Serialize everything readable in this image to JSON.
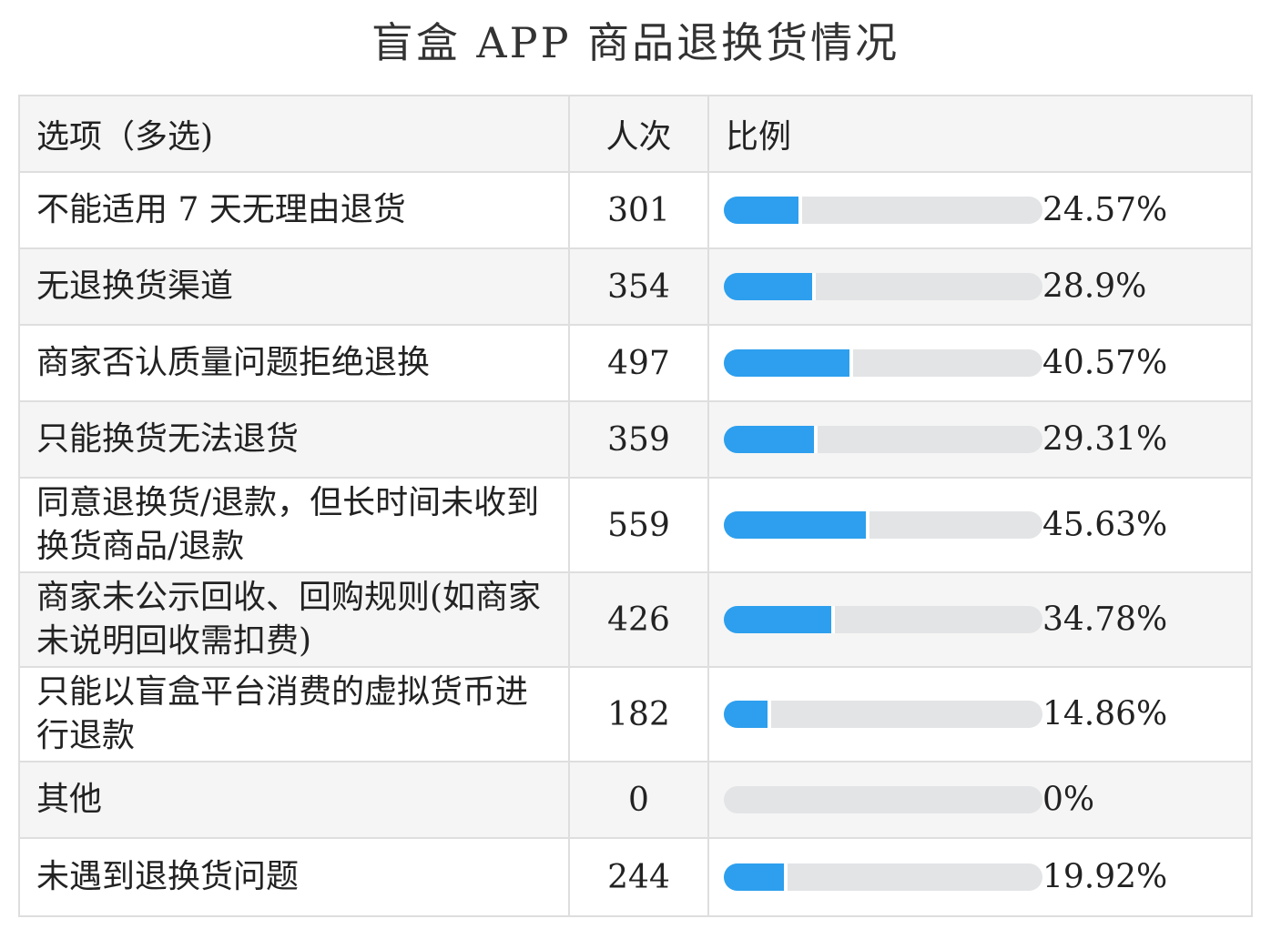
{
  "title": "盲盒 APP 商品退换货情况",
  "headers": {
    "option": "选项（多选)",
    "count": "人次",
    "ratio": "比例"
  },
  "colors": {
    "bar_fill": "#2d9fee",
    "bar_track": "#e3e4e6",
    "alt_row": "#f5f5f5"
  },
  "chart_data": {
    "type": "table",
    "title": "盲盒 APP 商品退换货情况",
    "columns": [
      "选项（多选)",
      "人次",
      "比例"
    ],
    "rows": [
      {
        "option": "不能适用 7 天无理由退货",
        "count": "301",
        "ratio_label": "24.57%",
        "ratio": 24.57
      },
      {
        "option": "无退换货渠道",
        "count": "354",
        "ratio_label": "28.9%",
        "ratio": 28.9
      },
      {
        "option": "商家否认质量问题拒绝退换",
        "count": "497",
        "ratio_label": "40.57%",
        "ratio": 40.57
      },
      {
        "option": "只能换货无法退货",
        "count": "359",
        "ratio_label": "29.31%",
        "ratio": 29.31
      },
      {
        "option": "同意退换货/退款，但长时间未收到换货商品/退款",
        "count": "559",
        "ratio_label": "45.63%",
        "ratio": 45.63
      },
      {
        "option": "商家未公示回收、回购规则(如商家未说明回收需扣费)",
        "count": "426",
        "ratio_label": "34.78%",
        "ratio": 34.78
      },
      {
        "option": "只能以盲盒平台消费的虚拟货币进行退款",
        "count": "182",
        "ratio_label": "14.86%",
        "ratio": 14.86
      },
      {
        "option": "其他",
        "count": "0",
        "ratio_label": "0%",
        "ratio": 0
      },
      {
        "option": "未遇到退换货问题",
        "count": "244",
        "ratio_label": "19.92%",
        "ratio": 19.92
      }
    ]
  }
}
